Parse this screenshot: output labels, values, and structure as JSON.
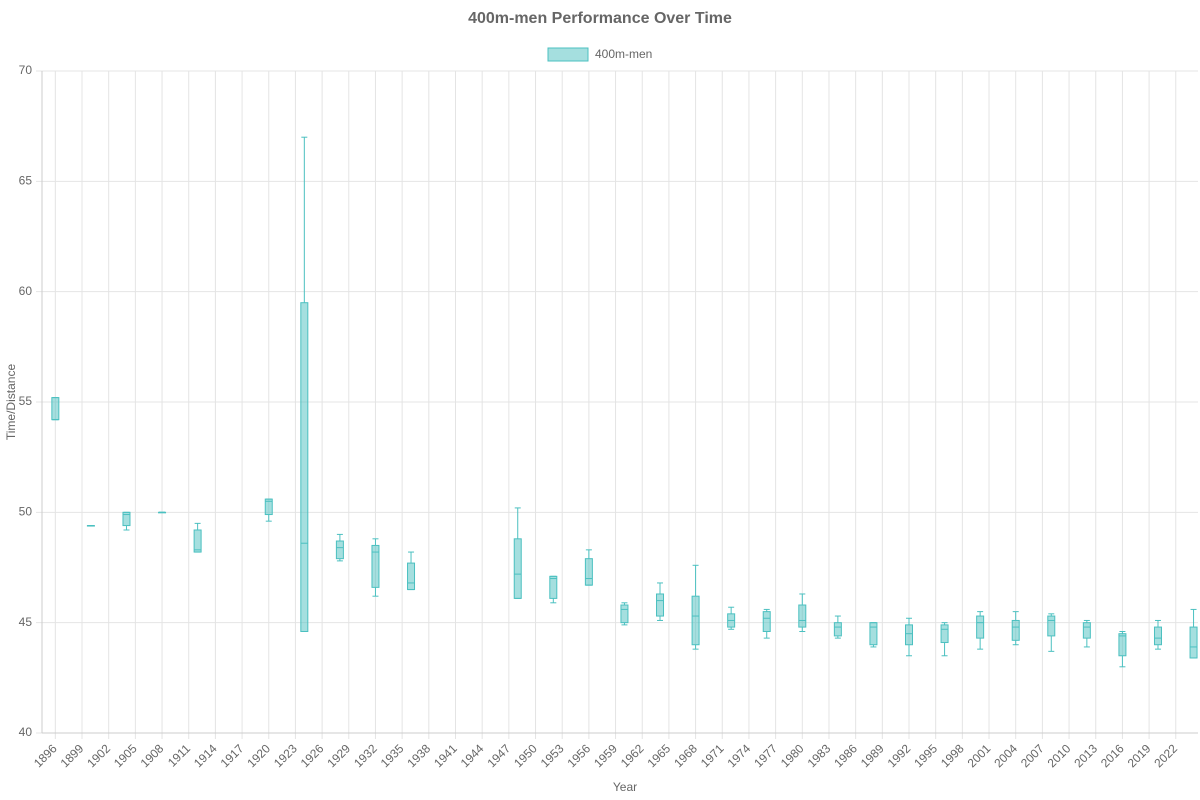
{
  "chart_data": {
    "type": "boxplot",
    "title": "400m-men Performance Over Time",
    "x_label": "Year",
    "y_label": "Time/Distance",
    "x": [
      1896,
      1900,
      1904,
      1908,
      1912,
      1920,
      1924,
      1928,
      1932,
      1936,
      1948,
      1952,
      1956,
      1960,
      1964,
      1968,
      1972,
      1976,
      1980,
      1984,
      1988,
      1992,
      1996,
      2000,
      2004,
      2008,
      2012,
      2016,
      2020,
      2024
    ],
    "series": [
      {
        "name": "400m-men",
        "color": "#4bc0c0",
        "fill": "rgba(75,192,192,0.5)",
        "min": [
          54.2,
          49.4,
          49.2,
          50.0,
          48.2,
          49.6,
          44.6,
          47.8,
          46.2,
          46.5,
          46.1,
          45.9,
          46.7,
          44.9,
          45.1,
          43.8,
          44.7,
          44.3,
          44.6,
          44.3,
          43.9,
          43.5,
          43.5,
          43.8,
          44.0,
          43.7,
          43.9,
          43.0,
          43.8,
          43.4
        ],
        "q1": [
          54.2,
          49.4,
          49.4,
          50.0,
          48.2,
          49.9,
          44.6,
          47.9,
          46.6,
          46.5,
          46.1,
          46.1,
          46.7,
          45.0,
          45.3,
          44.0,
          44.8,
          44.6,
          44.8,
          44.4,
          44.0,
          44.0,
          44.1,
          44.3,
          44.2,
          44.4,
          44.3,
          43.5,
          44.0,
          43.4
        ],
        "median": [
          54.2,
          49.4,
          49.9,
          50.0,
          48.3,
          50.5,
          48.6,
          48.4,
          48.2,
          46.8,
          47.2,
          47.0,
          47.0,
          45.6,
          46.0,
          45.3,
          45.1,
          45.2,
          45.1,
          44.8,
          44.8,
          44.5,
          44.7,
          45.0,
          44.8,
          45.1,
          44.8,
          44.4,
          44.3,
          43.9
        ],
        "q3": [
          55.2,
          49.4,
          50.0,
          50.0,
          49.2,
          50.6,
          59.5,
          48.7,
          48.5,
          47.7,
          48.8,
          47.1,
          47.9,
          45.8,
          46.3,
          46.2,
          45.4,
          45.5,
          45.8,
          45.0,
          45.0,
          44.9,
          44.9,
          45.3,
          45.1,
          45.3,
          45.0,
          44.5,
          44.8,
          44.8
        ],
        "max": [
          55.2,
          49.4,
          50.0,
          50.0,
          49.5,
          50.6,
          67.0,
          49.0,
          48.8,
          48.2,
          50.2,
          47.1,
          48.3,
          45.9,
          46.8,
          47.6,
          45.7,
          45.6,
          46.3,
          45.3,
          45.0,
          45.2,
          45.0,
          45.5,
          45.5,
          45.4,
          45.1,
          44.6,
          45.1,
          45.6
        ]
      }
    ],
    "xlim": [
      1894.5,
      2024.5
    ],
    "xticks": [
      1896,
      1899,
      1902,
      1905,
      1908,
      1911,
      1914,
      1917,
      1920,
      1923,
      1926,
      1929,
      1932,
      1935,
      1938,
      1941,
      1944,
      1947,
      1950,
      1953,
      1956,
      1959,
      1962,
      1965,
      1968,
      1971,
      1974,
      1977,
      1980,
      1983,
      1986,
      1989,
      1992,
      1995,
      1998,
      2001,
      2004,
      2007,
      2010,
      2013,
      2016,
      2019,
      2022
    ],
    "ylim": [
      40,
      70
    ],
    "yticks": [
      40,
      45,
      50,
      55,
      60,
      65,
      70
    ],
    "grid": true,
    "legend": "top"
  }
}
